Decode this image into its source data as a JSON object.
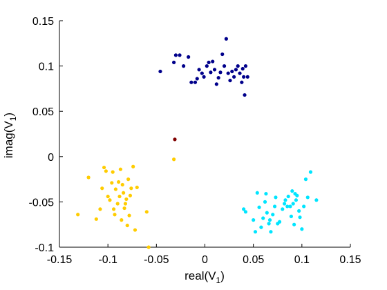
{
  "chart_data": {
    "type": "scatter",
    "title": "",
    "xlabel": {
      "main": "real(V",
      "sub": "1",
      "tail": ")"
    },
    "ylabel": {
      "main": "imag(V",
      "sub": "1",
      "tail": ")"
    },
    "xlim": [
      -0.15,
      0.15
    ],
    "ylim": [
      -0.1,
      0.15
    ],
    "xticks": [
      -0.15,
      -0.1,
      -0.05,
      0,
      0.05,
      0.1,
      0.15
    ],
    "xtick_labels": [
      "-0.15",
      "-0.1",
      "-0.05",
      "0",
      "0.05",
      "0.1",
      "0.15"
    ],
    "yticks": [
      -0.1,
      -0.05,
      0,
      0.05,
      0.1,
      0.15
    ],
    "ytick_labels": [
      "-0.1",
      "-0.05",
      "0",
      "0.05",
      "0.1",
      "0.15"
    ],
    "grid": false,
    "legend": "none",
    "series": [
      {
        "color": "#00008b",
        "points": [
          [
            -0.046,
            0.094
          ],
          [
            -0.032,
            0.104
          ],
          [
            -0.03,
            0.112
          ],
          [
            -0.026,
            0.112
          ],
          [
            -0.022,
            0.1
          ],
          [
            -0.017,
            0.11
          ],
          [
            -0.014,
            0.082
          ],
          [
            -0.01,
            0.082
          ],
          [
            -0.008,
            0.086
          ],
          [
            -0.006,
            0.096
          ],
          [
            -0.003,
            0.092
          ],
          [
            -0.001,
            0.088
          ],
          [
            0.002,
            0.1
          ],
          [
            0.004,
            0.104
          ],
          [
            0.006,
            0.093
          ],
          [
            0.008,
            0.105
          ],
          [
            0.01,
            0.096
          ],
          [
            0.012,
            0.08
          ],
          [
            0.014,
            0.087
          ],
          [
            0.016,
            0.093
          ],
          [
            0.018,
            0.113
          ],
          [
            0.02,
            0.1
          ],
          [
            0.022,
            0.13
          ],
          [
            0.024,
            0.092
          ],
          [
            0.026,
            0.084
          ],
          [
            0.028,
            0.094
          ],
          [
            0.03,
            0.088
          ],
          [
            0.032,
            0.096
          ],
          [
            0.034,
            0.1
          ],
          [
            0.036,
            0.092
          ],
          [
            0.038,
            0.082
          ],
          [
            0.039,
            0.097
          ],
          [
            0.04,
            0.088
          ],
          [
            0.041,
            0.068
          ],
          [
            0.042,
            0.1
          ],
          [
            0.044,
            0.088
          ]
        ]
      },
      {
        "color": "#ffcc00",
        "points": [
          [
            -0.131,
            -0.064
          ],
          [
            -0.12,
            -0.023
          ],
          [
            -0.112,
            -0.069
          ],
          [
            -0.108,
            -0.058
          ],
          [
            -0.106,
            -0.035
          ],
          [
            -0.104,
            -0.012
          ],
          [
            -0.102,
            -0.016
          ],
          [
            -0.1,
            -0.044
          ],
          [
            -0.098,
            -0.048
          ],
          [
            -0.096,
            -0.029
          ],
          [
            -0.095,
            -0.017
          ],
          [
            -0.094,
            -0.058
          ],
          [
            -0.093,
            -0.064
          ],
          [
            -0.092,
            -0.036
          ],
          [
            -0.09,
            -0.052
          ],
          [
            -0.089,
            -0.028
          ],
          [
            -0.088,
            -0.044
          ],
          [
            -0.087,
            -0.014
          ],
          [
            -0.086,
            -0.07
          ],
          [
            -0.085,
            -0.031
          ],
          [
            -0.084,
            -0.04
          ],
          [
            -0.083,
            -0.057
          ],
          [
            -0.082,
            -0.052
          ],
          [
            -0.081,
            -0.047
          ],
          [
            -0.08,
            -0.076
          ],
          [
            -0.079,
            -0.025
          ],
          [
            -0.078,
            -0.065
          ],
          [
            -0.077,
            -0.043
          ],
          [
            -0.076,
            -0.035
          ],
          [
            -0.074,
            -0.011
          ],
          [
            -0.072,
            -0.081
          ],
          [
            -0.07,
            -0.034
          ],
          [
            -0.06,
            -0.061
          ],
          [
            -0.058,
            -0.1
          ],
          [
            -0.032,
            -0.003
          ]
        ]
      },
      {
        "color": "#00e5ff",
        "points": [
          [
            0.04,
            -0.058
          ],
          [
            0.042,
            -0.061
          ],
          [
            0.05,
            -0.07
          ],
          [
            0.052,
            -0.083
          ],
          [
            0.054,
            -0.04
          ],
          [
            0.056,
            -0.056
          ],
          [
            0.058,
            -0.078
          ],
          [
            0.06,
            -0.068
          ],
          [
            0.062,
            -0.05
          ],
          [
            0.063,
            -0.041
          ],
          [
            0.064,
            -0.062
          ],
          [
            0.066,
            -0.074
          ],
          [
            0.067,
            -0.07
          ],
          [
            0.068,
            -0.083
          ],
          [
            0.07,
            -0.064
          ],
          [
            0.072,
            -0.055
          ],
          [
            0.073,
            -0.045
          ],
          [
            0.075,
            -0.074
          ],
          [
            0.077,
            -0.072
          ],
          [
            0.08,
            -0.058
          ],
          [
            0.082,
            -0.052
          ],
          [
            0.083,
            -0.048
          ],
          [
            0.085,
            -0.055
          ],
          [
            0.086,
            -0.044
          ],
          [
            0.088,
            -0.055
          ],
          [
            0.089,
            -0.066
          ],
          [
            0.09,
            -0.038
          ],
          [
            0.091,
            -0.052
          ],
          [
            0.092,
            -0.075
          ],
          [
            0.093,
            -0.041
          ],
          [
            0.094,
            -0.048
          ],
          [
            0.095,
            -0.043
          ],
          [
            0.097,
            -0.06
          ],
          [
            0.098,
            -0.067
          ],
          [
            0.1,
            -0.08
          ],
          [
            0.102,
            -0.055
          ],
          [
            0.104,
            -0.025
          ],
          [
            0.106,
            -0.045
          ],
          [
            0.109,
            -0.017
          ],
          [
            0.115,
            -0.048
          ]
        ]
      },
      {
        "color": "#800000",
        "points": [
          [
            -0.031,
            0.019
          ]
        ]
      }
    ]
  }
}
